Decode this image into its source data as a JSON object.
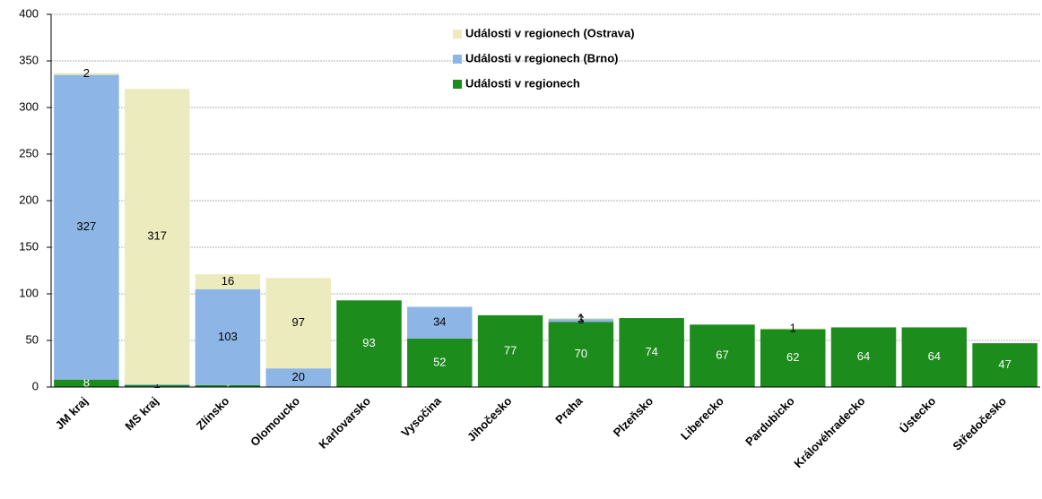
{
  "chart_data": {
    "type": "stacked_bar",
    "categories": [
      "JM kraj",
      "MS kraj",
      "Zlínsko",
      "Olomoucko",
      "Karlovarsko",
      "Vysočina",
      "Jihočesko",
      "Praha",
      "Plzeňsko",
      "Liberecko",
      "Pardubicko",
      "Královéhradecko",
      "Ústecko",
      "Středočesko"
    ],
    "series": [
      {
        "name": "Události v regionech",
        "color": "#1c8c1c",
        "values": [
          8,
          2,
          2,
          null,
          93,
          52,
          77,
          70,
          74,
          67,
          62,
          64,
          64,
          47
        ]
      },
      {
        "name": "Události v regionech (Brno)",
        "color": "#8db6e6",
        "values": [
          327,
          1,
          103,
          20,
          null,
          34,
          null,
          3,
          null,
          null,
          null,
          null,
          null,
          null
        ]
      },
      {
        "name": "Události v regionech (Ostrava)",
        "color": "#ecebbd",
        "values": [
          2,
          317,
          16,
          97,
          null,
          null,
          null,
          1,
          null,
          null,
          1,
          null,
          null,
          null
        ]
      }
    ],
    "ylim": [
      0,
      400
    ],
    "yticks": [
      0,
      50,
      100,
      150,
      200,
      250,
      300,
      350,
      400
    ],
    "grid": true
  }
}
